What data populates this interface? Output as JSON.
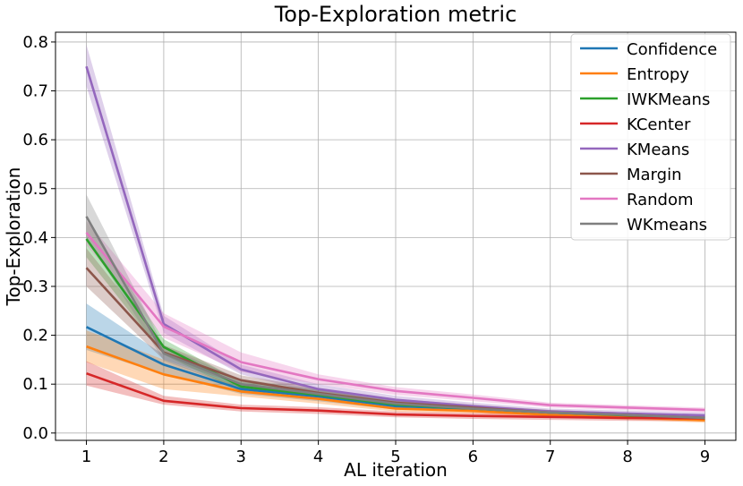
{
  "chart_data": {
    "type": "line",
    "title": "Top-Exploration metric",
    "xlabel": "AL iteration",
    "ylabel": "Top-Exploration",
    "x": [
      1,
      2,
      3,
      4,
      5,
      6,
      7,
      8,
      9
    ],
    "xlim": [
      0.6,
      9.4
    ],
    "ylim": [
      -0.015,
      0.82
    ],
    "xticks": [
      "1",
      "2",
      "3",
      "4",
      "5",
      "6",
      "7",
      "8",
      "9"
    ],
    "yticks": [
      "0.0",
      "0.1",
      "0.2",
      "0.3",
      "0.4",
      "0.5",
      "0.6",
      "0.7",
      "0.8"
    ],
    "grid": true,
    "legend_position": "top-right",
    "series": [
      {
        "name": "Confidence",
        "color": "#1f77b4",
        "values": [
          0.217,
          0.14,
          0.09,
          0.075,
          0.055,
          0.05,
          0.04,
          0.036,
          0.03
        ],
        "lower": [
          0.17,
          0.12,
          0.08,
          0.065,
          0.048,
          0.044,
          0.035,
          0.031,
          0.025
        ],
        "upper": [
          0.265,
          0.16,
          0.1,
          0.085,
          0.062,
          0.056,
          0.045,
          0.041,
          0.035
        ]
      },
      {
        "name": "Entropy",
        "color": "#ff7f0e",
        "values": [
          0.177,
          0.12,
          0.085,
          0.07,
          0.05,
          0.045,
          0.037,
          0.032,
          0.026
        ],
        "lower": [
          0.145,
          0.09,
          0.075,
          0.06,
          0.044,
          0.04,
          0.032,
          0.027,
          0.021
        ],
        "upper": [
          0.21,
          0.15,
          0.095,
          0.08,
          0.056,
          0.05,
          0.042,
          0.037,
          0.031
        ]
      },
      {
        "name": "IWKMeans",
        "color": "#2ca02c",
        "values": [
          0.397,
          0.176,
          0.095,
          0.078,
          0.058,
          0.05,
          0.042,
          0.036,
          0.03
        ],
        "lower": [
          0.36,
          0.16,
          0.085,
          0.068,
          0.05,
          0.044,
          0.037,
          0.031,
          0.025
        ],
        "upper": [
          0.435,
          0.192,
          0.105,
          0.088,
          0.066,
          0.056,
          0.047,
          0.041,
          0.035
        ]
      },
      {
        "name": "KCenter",
        "color": "#d62728",
        "values": [
          0.122,
          0.066,
          0.051,
          0.046,
          0.038,
          0.035,
          0.033,
          0.031,
          0.03
        ],
        "lower": [
          0.097,
          0.058,
          0.044,
          0.039,
          0.032,
          0.029,
          0.027,
          0.025,
          0.024
        ],
        "upper": [
          0.147,
          0.076,
          0.058,
          0.053,
          0.044,
          0.041,
          0.039,
          0.037,
          0.036
        ]
      },
      {
        "name": "KMeans",
        "color": "#9467bd",
        "values": [
          0.75,
          0.223,
          0.13,
          0.09,
          0.068,
          0.055,
          0.044,
          0.04,
          0.036
        ],
        "lower": [
          0.71,
          0.205,
          0.12,
          0.08,
          0.06,
          0.048,
          0.038,
          0.034,
          0.03
        ],
        "upper": [
          0.795,
          0.24,
          0.14,
          0.1,
          0.076,
          0.062,
          0.05,
          0.046,
          0.042
        ]
      },
      {
        "name": "Margin",
        "color": "#8c564b",
        "values": [
          0.338,
          0.165,
          0.108,
          0.082,
          0.062,
          0.052,
          0.042,
          0.037,
          0.031
        ],
        "lower": [
          0.3,
          0.15,
          0.098,
          0.072,
          0.054,
          0.046,
          0.037,
          0.032,
          0.026
        ],
        "upper": [
          0.378,
          0.18,
          0.118,
          0.092,
          0.07,
          0.058,
          0.047,
          0.042,
          0.036
        ]
      },
      {
        "name": "Random",
        "color": "#e377c2",
        "values": [
          0.41,
          0.218,
          0.145,
          0.11,
          0.086,
          0.072,
          0.057,
          0.052,
          0.047
        ],
        "lower": [
          0.385,
          0.195,
          0.125,
          0.1,
          0.078,
          0.065,
          0.052,
          0.047,
          0.042
        ],
        "upper": [
          0.435,
          0.245,
          0.165,
          0.12,
          0.094,
          0.079,
          0.062,
          0.057,
          0.052
        ]
      },
      {
        "name": "WKmeans",
        "color": "#7f7f7f",
        "values": [
          0.443,
          0.163,
          0.1,
          0.08,
          0.06,
          0.05,
          0.042,
          0.037,
          0.031
        ],
        "lower": [
          0.4,
          0.148,
          0.09,
          0.07,
          0.052,
          0.044,
          0.037,
          0.032,
          0.026
        ],
        "upper": [
          0.488,
          0.178,
          0.11,
          0.09,
          0.068,
          0.056,
          0.047,
          0.042,
          0.036
        ]
      }
    ]
  }
}
